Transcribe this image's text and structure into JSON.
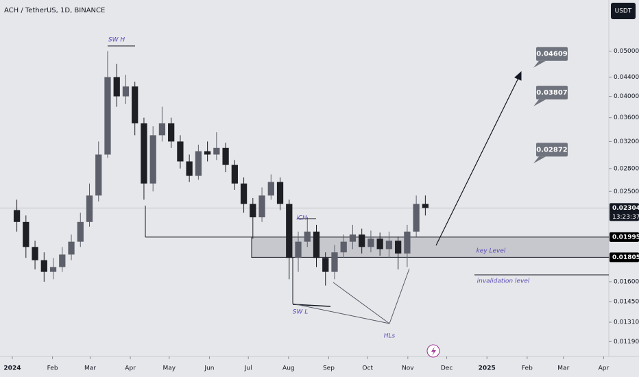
{
  "chart_data": {
    "type": "candlestick",
    "title": "ACH / TetherUS, 1D, BINANCE",
    "currency": "USDT",
    "log_scale": true,
    "up_color": "#5d606b",
    "down_color": "#1e1f24",
    "x": [
      0,
      7,
      14,
      21,
      28,
      35,
      42,
      49,
      56,
      63,
      70,
      77,
      84,
      91,
      98,
      105,
      112,
      119,
      126,
      133,
      140,
      147,
      154,
      161,
      168,
      175,
      182,
      189,
      196,
      203,
      210,
      217,
      224,
      231,
      238,
      245,
      252,
      259,
      266,
      273,
      280,
      287,
      294,
      301,
      308,
      315
    ],
    "open": [
      0.0228,
      0.0215,
      0.019,
      0.0178,
      0.0168,
      0.0172,
      0.0183,
      0.0195,
      0.0215,
      0.0245,
      0.03,
      0.044,
      0.04,
      0.042,
      0.035,
      0.026,
      0.033,
      0.035,
      0.032,
      0.029,
      0.027,
      0.0305,
      0.03,
      0.031,
      0.0285,
      0.026,
      0.0235,
      0.022,
      0.0245,
      0.0262,
      0.0235,
      0.018,
      0.0195,
      0.0205,
      0.018,
      0.0168,
      0.0185,
      0.0195,
      0.0202,
      0.019,
      0.0198,
      0.0188,
      0.0196,
      0.0184,
      0.0205,
      0.0235
    ],
    "high": [
      0.024,
      0.0222,
      0.0196,
      0.0185,
      0.018,
      0.019,
      0.0202,
      0.0225,
      0.026,
      0.032,
      0.05,
      0.047,
      0.0445,
      0.043,
      0.036,
      0.0345,
      0.038,
      0.036,
      0.033,
      0.03,
      0.0315,
      0.032,
      0.0335,
      0.0318,
      0.0292,
      0.0268,
      0.0242,
      0.0255,
      0.0272,
      0.0268,
      0.024,
      0.0205,
      0.022,
      0.0212,
      0.0185,
      0.0192,
      0.0202,
      0.0212,
      0.0208,
      0.0206,
      0.0204,
      0.0205,
      0.02,
      0.0212,
      0.0245,
      0.0245
    ],
    "low": [
      0.0205,
      0.018,
      0.017,
      0.016,
      0.0162,
      0.0168,
      0.0178,
      0.019,
      0.021,
      0.0238,
      0.0295,
      0.038,
      0.0385,
      0.033,
      0.024,
      0.025,
      0.032,
      0.031,
      0.028,
      0.0262,
      0.0265,
      0.029,
      0.0292,
      0.0275,
      0.0252,
      0.0225,
      0.0198,
      0.0215,
      0.024,
      0.0228,
      0.0162,
      0.0168,
      0.019,
      0.0172,
      0.0157,
      0.0162,
      0.018,
      0.0188,
      0.0184,
      0.0185,
      0.0182,
      0.018,
      0.017,
      0.0172,
      0.02,
      0.0222
    ],
    "close": [
      0.0215,
      0.019,
      0.0178,
      0.0168,
      0.0172,
      0.0183,
      0.0195,
      0.0215,
      0.0245,
      0.03,
      0.044,
      0.04,
      0.042,
      0.035,
      0.026,
      0.033,
      0.035,
      0.032,
      0.029,
      0.027,
      0.0305,
      0.03,
      0.031,
      0.0285,
      0.026,
      0.0235,
      0.022,
      0.0245,
      0.0262,
      0.0235,
      0.018,
      0.0195,
      0.0205,
      0.018,
      0.0168,
      0.0185,
      0.0195,
      0.0202,
      0.019,
      0.0198,
      0.0188,
      0.0196,
      0.0184,
      0.0205,
      0.0235,
      0.02304
    ],
    "xlim": [
      -9.5,
      460
    ],
    "xticks": [
      {
        "value": 0,
        "label": "2024"
      },
      {
        "value": 31,
        "label": "Feb"
      },
      {
        "value": 60,
        "label": "Mar"
      },
      {
        "value": 91,
        "label": "Apr"
      },
      {
        "value": 121,
        "label": "May"
      },
      {
        "value": 152,
        "label": "Jun"
      },
      {
        "value": 182,
        "label": "Jul"
      },
      {
        "value": 213,
        "label": "Aug"
      },
      {
        "value": 244,
        "label": "Sep"
      },
      {
        "value": 274,
        "label": "Oct"
      },
      {
        "value": 305,
        "label": "Nov"
      },
      {
        "value": 335,
        "label": "Dec"
      },
      {
        "value": 366,
        "label": "2025"
      },
      {
        "value": 397,
        "label": "Feb"
      },
      {
        "value": 425,
        "label": "Mar"
      },
      {
        "value": 456,
        "label": "Apr"
      }
    ],
    "ylim": [
      0.01106,
      0.0644
    ],
    "yticks": [
      {
        "value": 0.05,
        "label": "0.05000"
      },
      {
        "value": 0.044,
        "label": "0.04400"
      },
      {
        "value": 0.04,
        "label": "0.04000"
      },
      {
        "value": 0.036,
        "label": "0.03600"
      },
      {
        "value": 0.032,
        "label": "0.03200"
      },
      {
        "value": 0.028,
        "label": "0.02800"
      },
      {
        "value": 0.025,
        "label": "0.02500"
      },
      {
        "value": 0.016,
        "label": "0.01600"
      },
      {
        "value": 0.0145,
        "label": "0.01450"
      },
      {
        "value": 0.0131,
        "label": "0.01310"
      },
      {
        "value": 0.0119,
        "label": "0.01190"
      }
    ],
    "last_price": {
      "value": 0.02304,
      "label": "0.02304",
      "countdown": "13:23:37"
    },
    "levels": [
      {
        "value": 0.01995,
        "label": "0.01995"
      },
      {
        "value": 0.01805,
        "label": "0.01805"
      }
    ],
    "targets": [
      {
        "value": 0.04609,
        "label": "0.04609"
      },
      {
        "value": 0.03807,
        "label": "0.03807"
      },
      {
        "value": 0.02872,
        "label": "0.02872"
      }
    ],
    "annotations": [
      "SW H",
      "iCH",
      "SW L",
      "HLs",
      "key Level",
      "invalidation level"
    ]
  }
}
